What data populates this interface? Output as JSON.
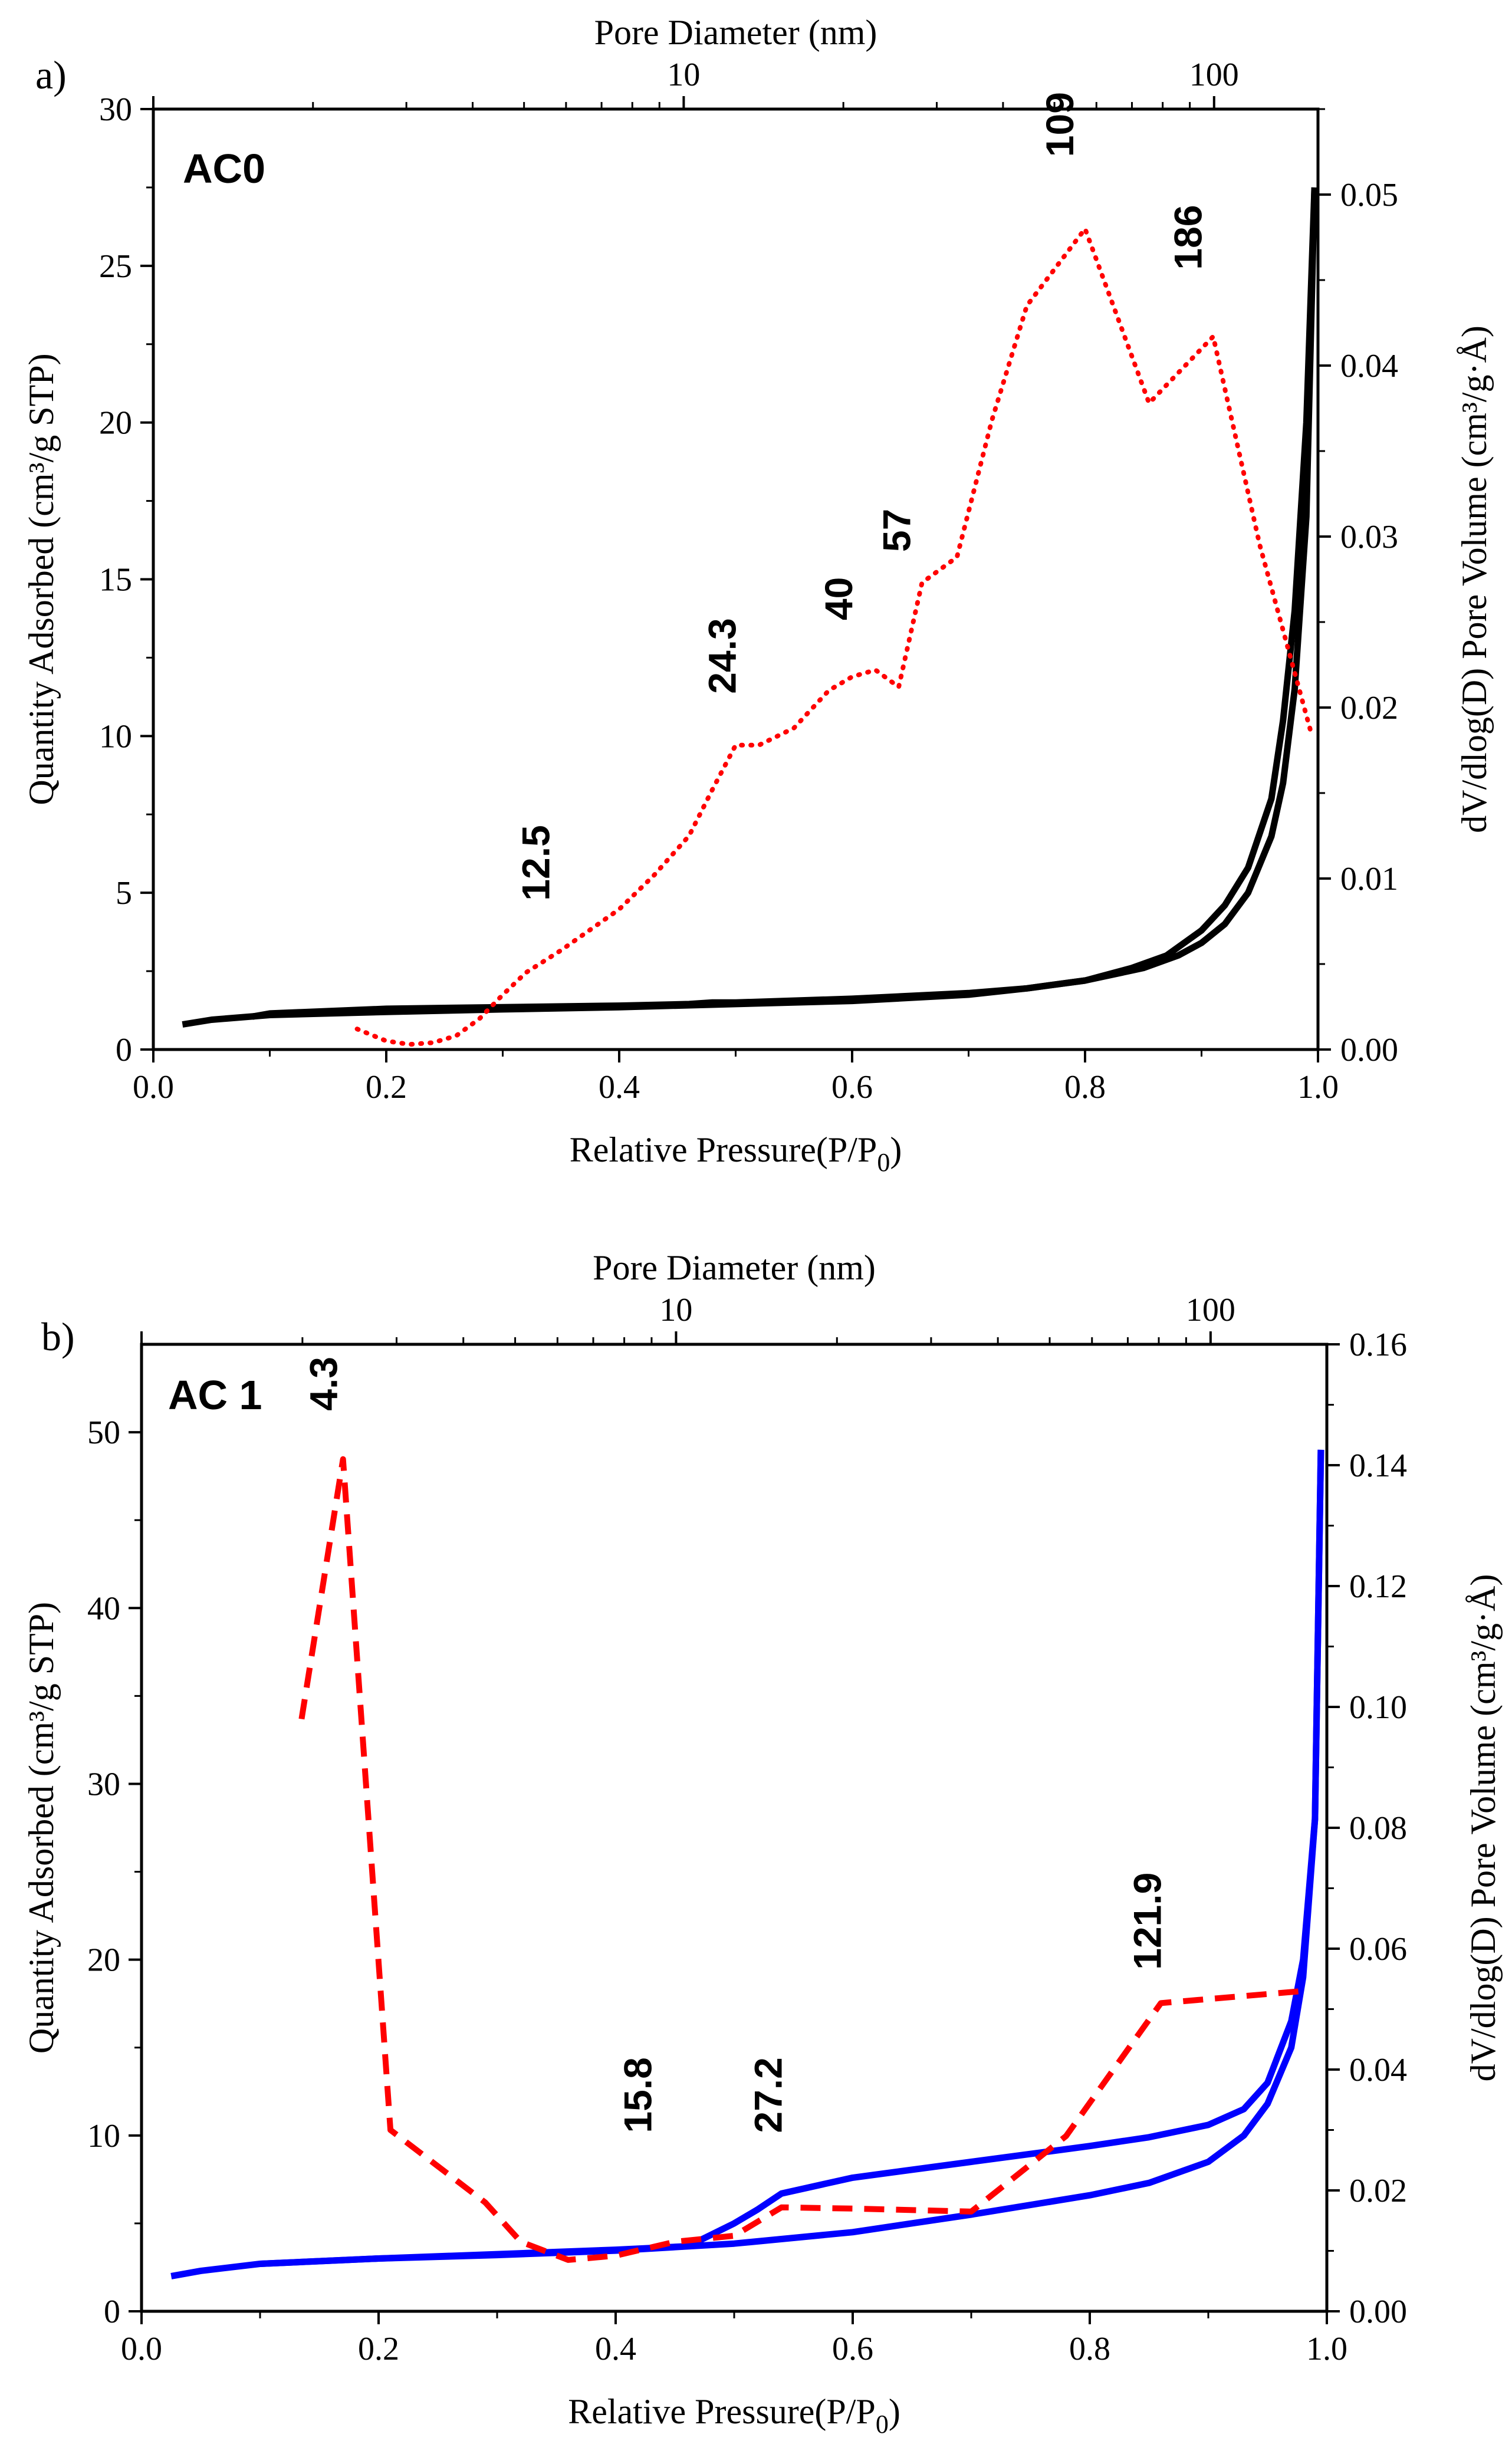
{
  "chart_data": [
    {
      "type": "line",
      "panel_label": "a)",
      "sample_label": "AC0",
      "xlabel_parts": [
        "Relative Pressure(P/P",
        "0",
        ")"
      ],
      "top_xlabel": "Pore Diameter (nm)",
      "ylabel": "Quantity Adsorbed (cm³/g STP)",
      "ylabel_right": "dV/dlog(D) Pore Volume (cm³/g·Å)",
      "xlim": [
        0.0,
        1.0
      ],
      "ylim": [
        0,
        30
      ],
      "ylim_right": [
        0.0,
        0.055
      ],
      "x_ticks": [
        "0.0",
        "0.2",
        "0.4",
        "0.6",
        "0.8",
        "1.0"
      ],
      "y_ticks": [
        "0",
        "5",
        "10",
        "15",
        "20",
        "25",
        "30"
      ],
      "y_right_ticks": [
        "0.00",
        "0.01",
        "0.02",
        "0.03",
        "0.04",
        "0.05"
      ],
      "top_ticks": [
        {
          "value": 10,
          "label": "10"
        },
        {
          "value": 100,
          "label": "100"
        }
      ],
      "top_log_range": [
        1.0,
        157.0
      ],
      "series": [
        {
          "name": "adsorption",
          "color": "#000000",
          "style": "solid",
          "axis": "left",
          "x": [
            0.025,
            0.05,
            0.1,
            0.2,
            0.3,
            0.4,
            0.5,
            0.6,
            0.7,
            0.75,
            0.8,
            0.85,
            0.88,
            0.9,
            0.92,
            0.94,
            0.96,
            0.97,
            0.98,
            0.99,
            0.997
          ],
          "y": [
            0.8,
            0.95,
            1.1,
            1.2,
            1.28,
            1.35,
            1.45,
            1.55,
            1.75,
            1.95,
            2.2,
            2.6,
            3.0,
            3.4,
            4.0,
            5.0,
            6.8,
            8.5,
            11.5,
            17.0,
            27.5
          ]
        },
        {
          "name": "desorption",
          "color": "#000000",
          "style": "solid",
          "axis": "left",
          "x": [
            0.997,
            0.99,
            0.98,
            0.97,
            0.96,
            0.94,
            0.92,
            0.9,
            0.87,
            0.84,
            0.8,
            0.75,
            0.7,
            0.6,
            0.5,
            0.48,
            0.46,
            0.4,
            0.3,
            0.2,
            0.1,
            0.085
          ],
          "y": [
            27.5,
            20.0,
            14.0,
            10.5,
            8.0,
            5.8,
            4.6,
            3.8,
            3.0,
            2.6,
            2.2,
            1.95,
            1.8,
            1.62,
            1.5,
            1.5,
            1.45,
            1.4,
            1.35,
            1.3,
            1.15,
            1.05
          ]
        },
        {
          "name": "pore size distribution",
          "color": "#ff0000",
          "style": "dotted",
          "axis": "right",
          "x": [
            0.175,
            0.2,
            0.22,
            0.24,
            0.26,
            0.28,
            0.3,
            0.32,
            0.35,
            0.4,
            0.43,
            0.46,
            0.48,
            0.5,
            0.52,
            0.55,
            0.58,
            0.6,
            0.62,
            0.64,
            0.66,
            0.69,
            0.72,
            0.75,
            0.8,
            0.855,
            0.91,
            0.95,
            0.995
          ],
          "y": [
            0.0012,
            0.0005,
            0.0003,
            0.0004,
            0.0008,
            0.0018,
            0.0032,
            0.0045,
            0.0058,
            0.0082,
            0.0102,
            0.0125,
            0.0152,
            0.0178,
            0.0178,
            0.0188,
            0.021,
            0.0218,
            0.0222,
            0.0212,
            0.0273,
            0.0288,
            0.0368,
            0.0435,
            0.048,
            0.0378,
            0.0417,
            0.0295,
            0.0183
          ]
        }
      ],
      "annotations": [
        {
          "text": "12.5",
          "x": 0.34,
          "y_right": 0.0087
        },
        {
          "text": "24.3",
          "x": 0.5,
          "y_right": 0.0208
        },
        {
          "text": "40",
          "x": 0.6,
          "y_right": 0.0251
        },
        {
          "text": "57",
          "x": 0.65,
          "y_right": 0.0291
        },
        {
          "text": "109",
          "x": 0.79,
          "y_right": 0.0522
        },
        {
          "text": "186",
          "x": 0.9,
          "y_right": 0.0456
        }
      ]
    },
    {
      "type": "line",
      "panel_label": "b)",
      "sample_label": "AC 1",
      "xlabel_parts": [
        "Relative Pressure(P/P",
        "0",
        ")"
      ],
      "top_xlabel": "Pore Diameter (nm)",
      "ylabel": "Quantity Adsorbed (cm³/g STP)",
      "ylabel_right": "dV/dlog(D) Pore Volume (cm³/g·Å)",
      "xlim": [
        0.0,
        1.0
      ],
      "ylim": [
        0,
        55
      ],
      "ylim_right": [
        0.0,
        0.16
      ],
      "x_ticks": [
        "0.0",
        "0.2",
        "0.4",
        "0.6",
        "0.8",
        "1.0"
      ],
      "y_ticks": [
        "0",
        "10",
        "20",
        "30",
        "40",
        "50"
      ],
      "y_right_ticks": [
        "0.00",
        "0.02",
        "0.04",
        "0.06",
        "0.08",
        "0.10",
        "0.12",
        "0.14",
        "0.16"
      ],
      "top_ticks": [
        {
          "value": 10,
          "label": "10"
        },
        {
          "value": 100,
          "label": "100"
        }
      ],
      "top_log_range": [
        1.0,
        165.0
      ],
      "series": [
        {
          "name": "adsorption",
          "color": "#0000ff",
          "style": "solid",
          "axis": "left",
          "x": [
            0.025,
            0.05,
            0.1,
            0.2,
            0.3,
            0.4,
            0.5,
            0.6,
            0.7,
            0.8,
            0.85,
            0.9,
            0.93,
            0.95,
            0.97,
            0.98,
            0.99,
            0.995
          ],
          "y": [
            2.0,
            2.3,
            2.7,
            3.0,
            3.2,
            3.45,
            3.85,
            4.5,
            5.5,
            6.6,
            7.3,
            8.5,
            10.0,
            11.8,
            15.0,
            19.0,
            28.0,
            49.0
          ]
        },
        {
          "name": "desorption",
          "color": "#0000ff",
          "style": "solid",
          "axis": "left",
          "x": [
            0.995,
            0.99,
            0.98,
            0.97,
            0.95,
            0.93,
            0.9,
            0.85,
            0.8,
            0.7,
            0.6,
            0.54,
            0.52,
            0.5,
            0.47,
            0.46,
            0.4,
            0.3,
            0.2,
            0.1
          ],
          "y": [
            49.0,
            28.0,
            20.0,
            16.5,
            13.0,
            11.5,
            10.6,
            9.9,
            9.4,
            8.5,
            7.6,
            6.7,
            5.8,
            5.0,
            4.0,
            3.7,
            3.5,
            3.25,
            3.0,
            2.7
          ]
        },
        {
          "name": "pore size distribution",
          "color": "#ff0000",
          "style": "dashed",
          "axis": "right",
          "x": [
            0.135,
            0.17,
            0.21,
            0.25,
            0.29,
            0.32,
            0.36,
            0.4,
            0.45,
            0.5,
            0.54,
            0.6,
            0.7,
            0.78,
            0.86,
            0.98
          ],
          "y": [
            0.098,
            0.141,
            0.03,
            0.024,
            0.018,
            0.0115,
            0.0085,
            0.0092,
            0.0115,
            0.0125,
            0.0172,
            0.017,
            0.0165,
            0.029,
            0.051,
            0.053
          ]
        }
      ],
      "annotations": [
        {
          "text": "4.3",
          "x": 0.165,
          "y_right": 0.149
        },
        {
          "text": "15.8",
          "x": 0.43,
          "y_right": 0.0295
        },
        {
          "text": "27.2",
          "x": 0.54,
          "y_right": 0.0295
        },
        {
          "text": "121.9",
          "x": 0.86,
          "y_right": 0.0565
        }
      ]
    }
  ]
}
